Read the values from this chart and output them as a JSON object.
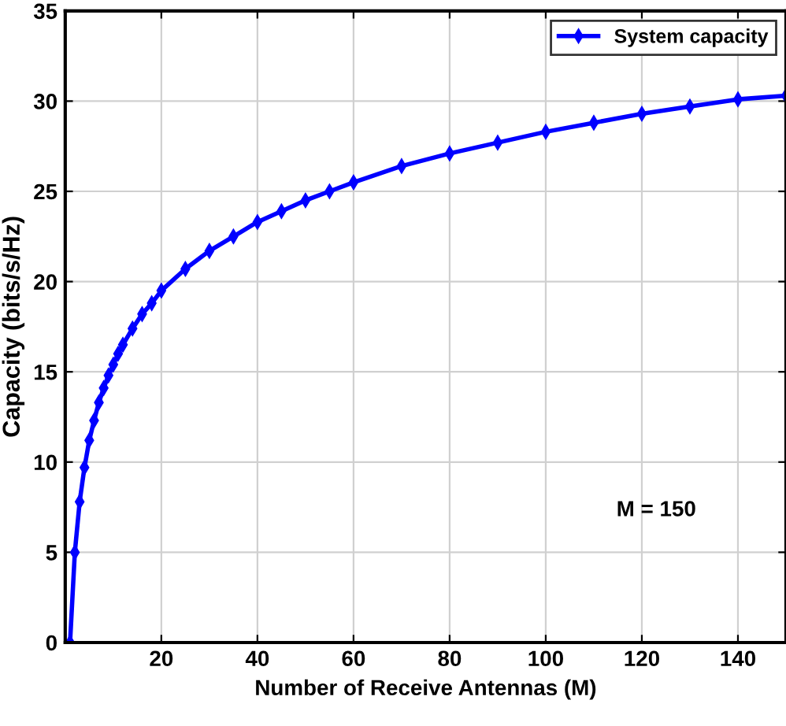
{
  "chart_data": {
    "type": "line",
    "xlabel": "Number of Receive Antennas (M)",
    "ylabel": "Capacity (bits/s/Hz)",
    "x": [
      1,
      2,
      3,
      4,
      5,
      6,
      7,
      8,
      9,
      10,
      11,
      12,
      14,
      16,
      18,
      20,
      25,
      30,
      35,
      40,
      45,
      50,
      55,
      60,
      70,
      80,
      90,
      100,
      110,
      120,
      130,
      140,
      150
    ],
    "series": [
      {
        "name": "System capacity",
        "color": "#0000ff",
        "values": [
          0,
          5,
          7.8,
          9.7,
          11.2,
          12.3,
          13.3,
          14.1,
          14.8,
          15.4,
          16.0,
          16.5,
          17.4,
          18.2,
          18.8,
          19.5,
          20.7,
          21.7,
          22.5,
          23.3,
          23.9,
          24.5,
          25.0,
          25.5,
          26.4,
          27.1,
          27.7,
          28.3,
          28.8,
          29.3,
          29.7,
          30.1,
          30.3
        ]
      }
    ],
    "xlim": [
      0,
      150
    ],
    "xticks": [
      20,
      40,
      60,
      80,
      100,
      120,
      140
    ],
    "ylim": [
      0,
      35
    ],
    "yticks": [
      0,
      5,
      10,
      15,
      20,
      25,
      30,
      35
    ],
    "grid": true,
    "legend": "top right",
    "marker": "diamond",
    "line_style": "solid",
    "annotations": [
      "M = 150"
    ]
  }
}
